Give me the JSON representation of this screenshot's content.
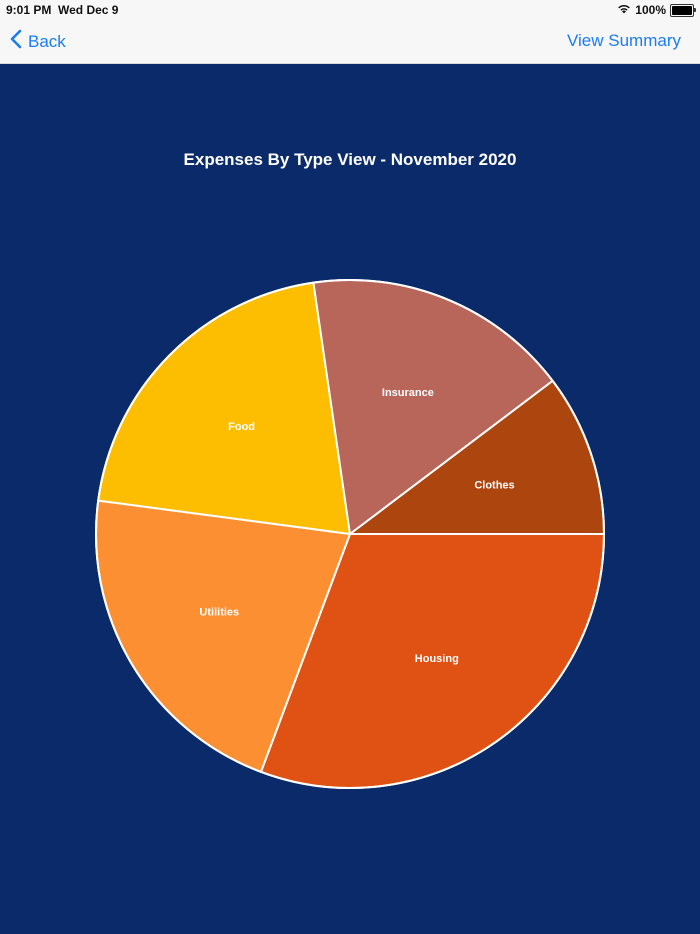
{
  "status_bar": {
    "time": "9:01 PM",
    "date": "Wed Dec 9",
    "battery_percent": "100%",
    "icons": [
      "wifi-icon",
      "battery-icon"
    ]
  },
  "nav": {
    "back_label": "Back",
    "back_icon": "chevron-left-icon",
    "right_button_label": "View Summary"
  },
  "colors": {
    "background": "#0a2a69",
    "nav_tint": "#1a7cf5",
    "slice_border": "#ffffff"
  },
  "chart_data": {
    "type": "pie",
    "title": "Expenses By Type View - November 2020",
    "categories": [
      "Housing",
      "Utilities",
      "Food",
      "Insurance",
      "Clothes"
    ],
    "values": [
      30.7,
      21.4,
      20.6,
      17.0,
      10.3
    ],
    "unit": "percent (estimated from slice angles)",
    "colors": [
      "#e05213",
      "#fb8f31",
      "#fdbe02",
      "#b8655a",
      "#ac450e"
    ],
    "start_angle_deg": 0,
    "direction": "clockwise (screen)",
    "labels_inside_slices": true,
    "legend": "none",
    "center": [
      350,
      534
    ],
    "radius": 254
  }
}
